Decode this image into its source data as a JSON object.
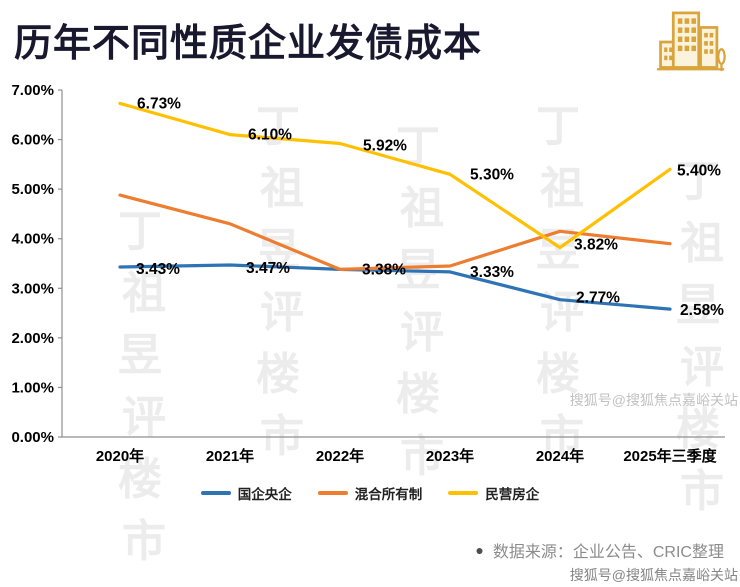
{
  "header": {
    "title": "历年不同性质企业发债成本",
    "logo_icon": "buildings-icon"
  },
  "chart_data": {
    "type": "line",
    "title": "历年不同性质企业发债成本",
    "categories": [
      "2020年",
      "2021年",
      "2022年",
      "2023年",
      "2024年",
      "2025年三季度"
    ],
    "y_ticks": [
      "7.00%",
      "6.00%",
      "5.00%",
      "4.00%",
      "3.00%",
      "2.00%",
      "1.00%",
      "0.00%"
    ],
    "ylim": [
      0,
      7
    ],
    "grid": false,
    "legend_position": "bottom",
    "series": [
      {
        "name": "国企央企",
        "color": "#2e74b5",
        "values": [
          3.43,
          3.47,
          3.38,
          3.33,
          2.77,
          2.58
        ],
        "labels": [
          "3.43%",
          "3.47%",
          "3.38%",
          "3.33%",
          "2.77%",
          "2.58%"
        ],
        "label_offsets": [
          [
            38,
            2
          ],
          [
            38,
            3
          ],
          [
            44,
            0
          ],
          [
            42,
            0
          ],
          [
            38,
            -2
          ],
          [
            32,
            1
          ]
        ]
      },
      {
        "name": "混合所有制",
        "color": "#ed7d31",
        "values": [
          4.88,
          4.3,
          3.38,
          3.45,
          4.15,
          3.9
        ],
        "labels": [
          "",
          "",
          "",
          "",
          "",
          ""
        ],
        "label_offsets": [
          [
            0,
            0
          ],
          [
            0,
            0
          ],
          [
            0,
            0
          ],
          [
            0,
            0
          ],
          [
            0,
            0
          ],
          [
            0,
            0
          ]
        ]
      },
      {
        "name": "民营房企",
        "color": "#ffc000",
        "values": [
          6.73,
          6.1,
          5.92,
          5.3,
          3.82,
          5.4
        ],
        "labels": [
          "6.73%",
          "6.10%",
          "5.92%",
          "5.30%",
          "3.82%",
          "5.40%"
        ],
        "label_offsets": [
          [
            39,
            0
          ],
          [
            40,
            0
          ],
          [
            45,
            2
          ],
          [
            42,
            0
          ],
          [
            36,
            -3
          ],
          [
            29,
            1
          ]
        ]
      }
    ]
  },
  "source": {
    "bullet": "●",
    "text": "数据来源：企业公告、CRIC整理"
  },
  "watermarks": {
    "diagonal_text": "丁祖昱评楼市",
    "sohu": "搜狐号@搜狐焦点嘉峪关站"
  },
  "colors": {
    "title": "#18182f",
    "axis": "#8f8f8f",
    "label": "#000000",
    "source_text": "#8c8c8c",
    "logo_gold": "#d9a43c"
  }
}
